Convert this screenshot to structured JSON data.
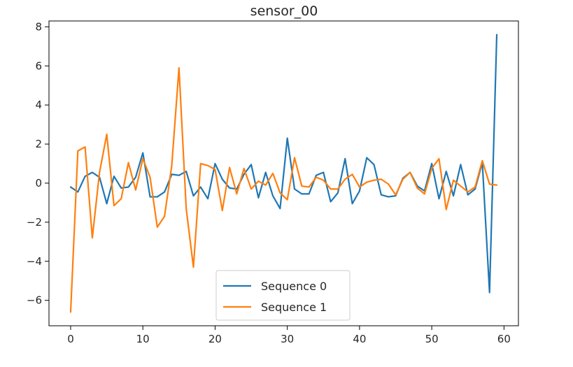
{
  "chart_data": {
    "type": "line",
    "title": "sensor_00",
    "xlabel": "",
    "ylabel": "",
    "xlim": [
      -3,
      62
    ],
    "ylim": [
      -7.3,
      8.3
    ],
    "xticks": [
      0,
      10,
      20,
      30,
      40,
      50,
      60
    ],
    "yticks": [
      -6,
      -4,
      -2,
      0,
      2,
      4,
      6,
      8
    ],
    "grid": false,
    "legend": "bottom-center",
    "x": [
      0,
      1,
      2,
      3,
      4,
      5,
      6,
      7,
      8,
      9,
      10,
      11,
      12,
      13,
      14,
      15,
      16,
      17,
      18,
      19,
      20,
      21,
      22,
      23,
      24,
      25,
      26,
      27,
      28,
      29,
      30,
      31,
      32,
      33,
      34,
      35,
      36,
      37,
      38,
      39,
      40,
      41,
      42,
      43,
      44,
      45,
      46,
      47,
      48,
      49,
      50,
      51,
      52,
      53,
      54,
      55,
      56,
      57,
      58,
      59
    ],
    "series": [
      {
        "name": "Sequence 0",
        "color": "#1f77b4",
        "values": [
          -0.2,
          -0.45,
          0.35,
          0.55,
          0.3,
          -1.05,
          0.35,
          -0.25,
          -0.2,
          0.3,
          1.55,
          -0.7,
          -0.7,
          -0.45,
          0.45,
          0.4,
          0.6,
          -0.65,
          -0.2,
          -0.8,
          1.0,
          0.2,
          -0.25,
          -0.3,
          0.45,
          0.95,
          -0.75,
          0.55,
          -0.65,
          -1.3,
          2.3,
          -0.3,
          -0.55,
          -0.55,
          0.4,
          0.55,
          -0.95,
          -0.5,
          1.25,
          -1.05,
          -0.4,
          1.3,
          0.95,
          -0.6,
          -0.7,
          -0.65,
          0.25,
          0.55,
          -0.15,
          -0.4,
          1.0,
          -0.8,
          0.6,
          -0.65,
          0.95,
          -0.6,
          -0.3,
          1.05,
          -5.6,
          7.6
        ]
      },
      {
        "name": "Sequence 1",
        "color": "#ff7f0e",
        "values": [
          -6.6,
          1.65,
          1.85,
          -2.8,
          0.55,
          2.5,
          -1.15,
          -0.8,
          1.05,
          -0.35,
          1.25,
          0.3,
          -2.25,
          -1.7,
          0.9,
          5.9,
          -1.3,
          -4.3,
          1.0,
          0.9,
          0.7,
          -1.4,
          0.8,
          -0.55,
          0.75,
          -0.3,
          0.1,
          -0.1,
          0.5,
          -0.5,
          -0.85,
          1.3,
          -0.15,
          -0.2,
          0.3,
          0.15,
          -0.3,
          -0.3,
          0.2,
          0.45,
          -0.2,
          0.05,
          0.15,
          0.2,
          -0.05,
          -0.6,
          0.2,
          0.55,
          -0.25,
          -0.55,
          0.75,
          1.25,
          -1.35,
          0.15,
          -0.15,
          -0.45,
          -0.2,
          1.15,
          -0.05,
          -0.1
        ]
      }
    ]
  }
}
